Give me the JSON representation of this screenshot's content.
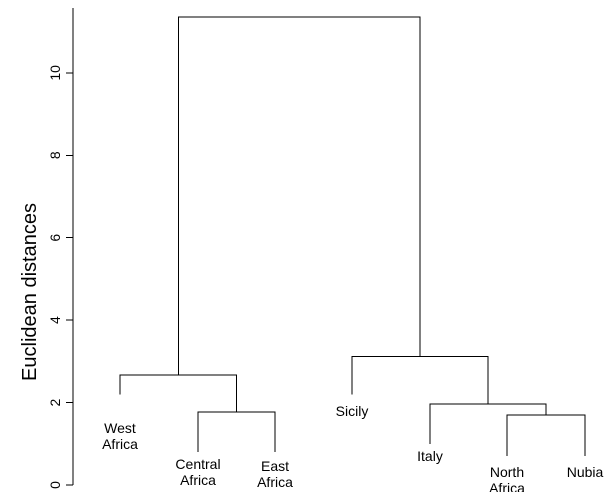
{
  "chart_data": {
    "type": "dendrogram",
    "ylabel": "Euclidean distances",
    "ylim": [
      0,
      11.5
    ],
    "yticks": [
      0,
      2,
      4,
      6,
      8,
      10
    ],
    "leaves": [
      {
        "id": "west_africa",
        "label_lines": [
          "West",
          "Africa"
        ]
      },
      {
        "id": "central_africa",
        "label_lines": [
          "Central",
          "Africa"
        ]
      },
      {
        "id": "east_africa",
        "label_lines": [
          "East",
          "Africa"
        ]
      },
      {
        "id": "sicily",
        "label_lines": [
          "Sicily"
        ]
      },
      {
        "id": "italy",
        "label_lines": [
          "Italy"
        ]
      },
      {
        "id": "north_africa",
        "label_lines": [
          "North",
          "Africa"
        ]
      },
      {
        "id": "nubia",
        "label_lines": [
          "Nubia"
        ]
      }
    ],
    "leaf_heights": [
      2.2,
      0.8,
      0.8,
      2.2,
      1.0,
      0.7,
      0.7
    ],
    "merges": [
      {
        "id": "m1",
        "left": "central_africa",
        "right": "east_africa",
        "height": 1.77
      },
      {
        "id": "m2",
        "left": "west_africa",
        "right": "m1",
        "height": 2.67
      },
      {
        "id": "m3",
        "left": "north_africa",
        "right": "nubia",
        "height": 1.7
      },
      {
        "id": "m4",
        "left": "italy",
        "right": "m3",
        "height": 1.97
      },
      {
        "id": "m5",
        "left": "sicily",
        "right": "m4",
        "height": 3.12
      },
      {
        "id": "m6",
        "left": "m2",
        "right": "m5",
        "height": 11.35
      }
    ]
  }
}
